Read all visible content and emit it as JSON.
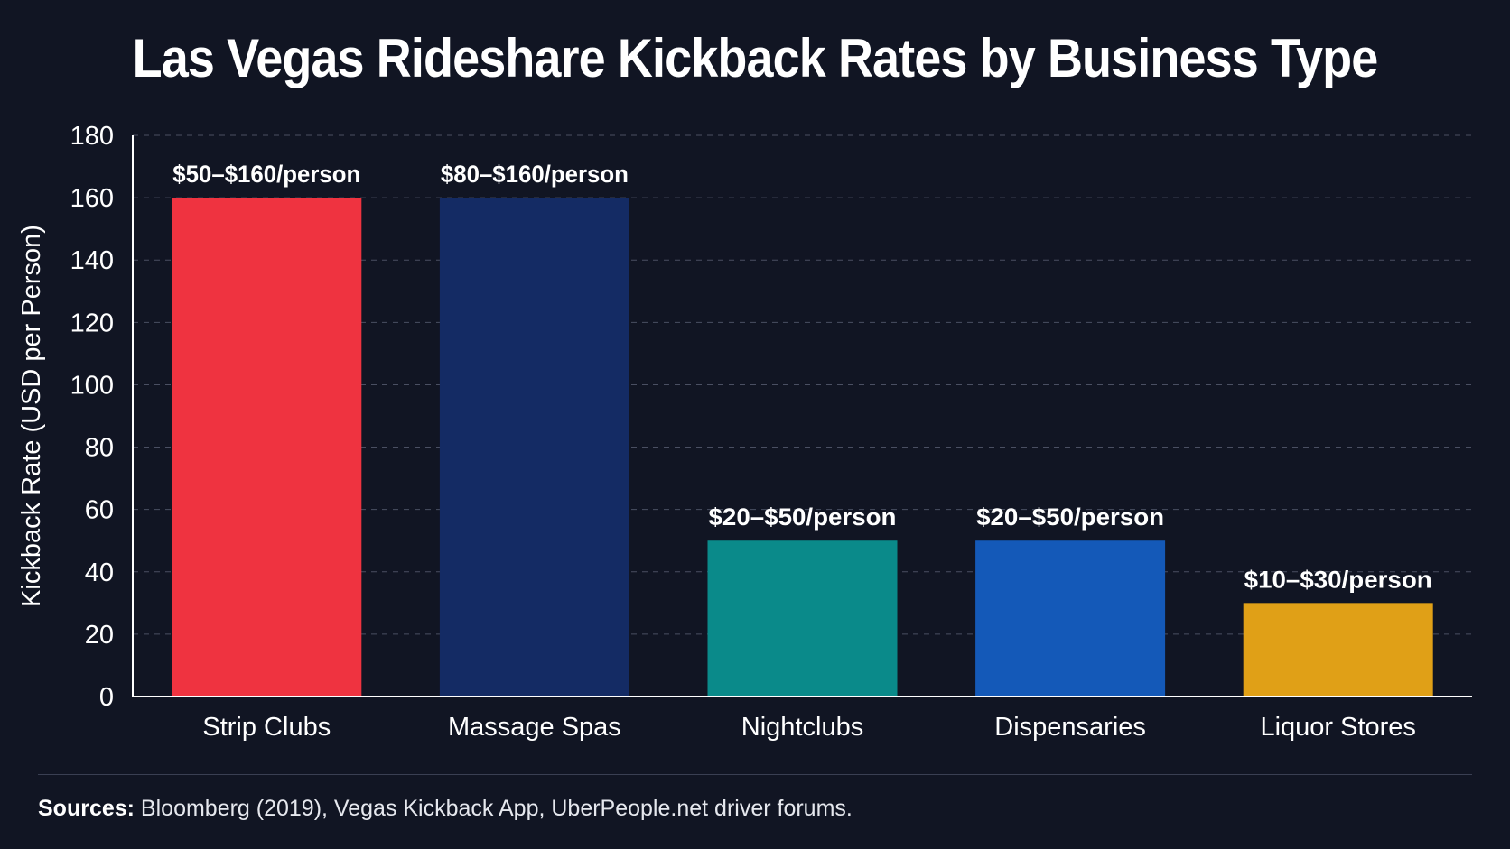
{
  "chart_data": {
    "type": "bar",
    "title": "Las Vegas Rideshare Kickback Rates by Business Type",
    "xlabel": "",
    "ylabel": "Kickback Rate (USD per Person)",
    "ylim": [
      0,
      180
    ],
    "yticks": [
      0,
      20,
      40,
      60,
      80,
      100,
      120,
      140,
      160,
      180
    ],
    "grid": "horizontal dashed",
    "categories": [
      "Strip Clubs",
      "Massage Spas",
      "Nightclubs",
      "Dispensaries",
      "Liquor Stores"
    ],
    "values": [
      160,
      160,
      50,
      50,
      30
    ],
    "data_labels": [
      "$50–$160/person",
      "$80–$160/person",
      "$20–$50/person",
      "$20–$50/person",
      "$10–$30/person"
    ],
    "colors": [
      "#ef3340",
      "#142b64",
      "#0a8a8a",
      "#1459b8",
      "#e0a017"
    ]
  },
  "footer": {
    "sources_label": "Sources:",
    "sources_text": " Bloomberg (2019), Vegas Kickback App, UberPeople.net driver forums."
  },
  "colors": {
    "background": "#111523",
    "axis": "#ffffff",
    "grid": "#4a4f62"
  }
}
